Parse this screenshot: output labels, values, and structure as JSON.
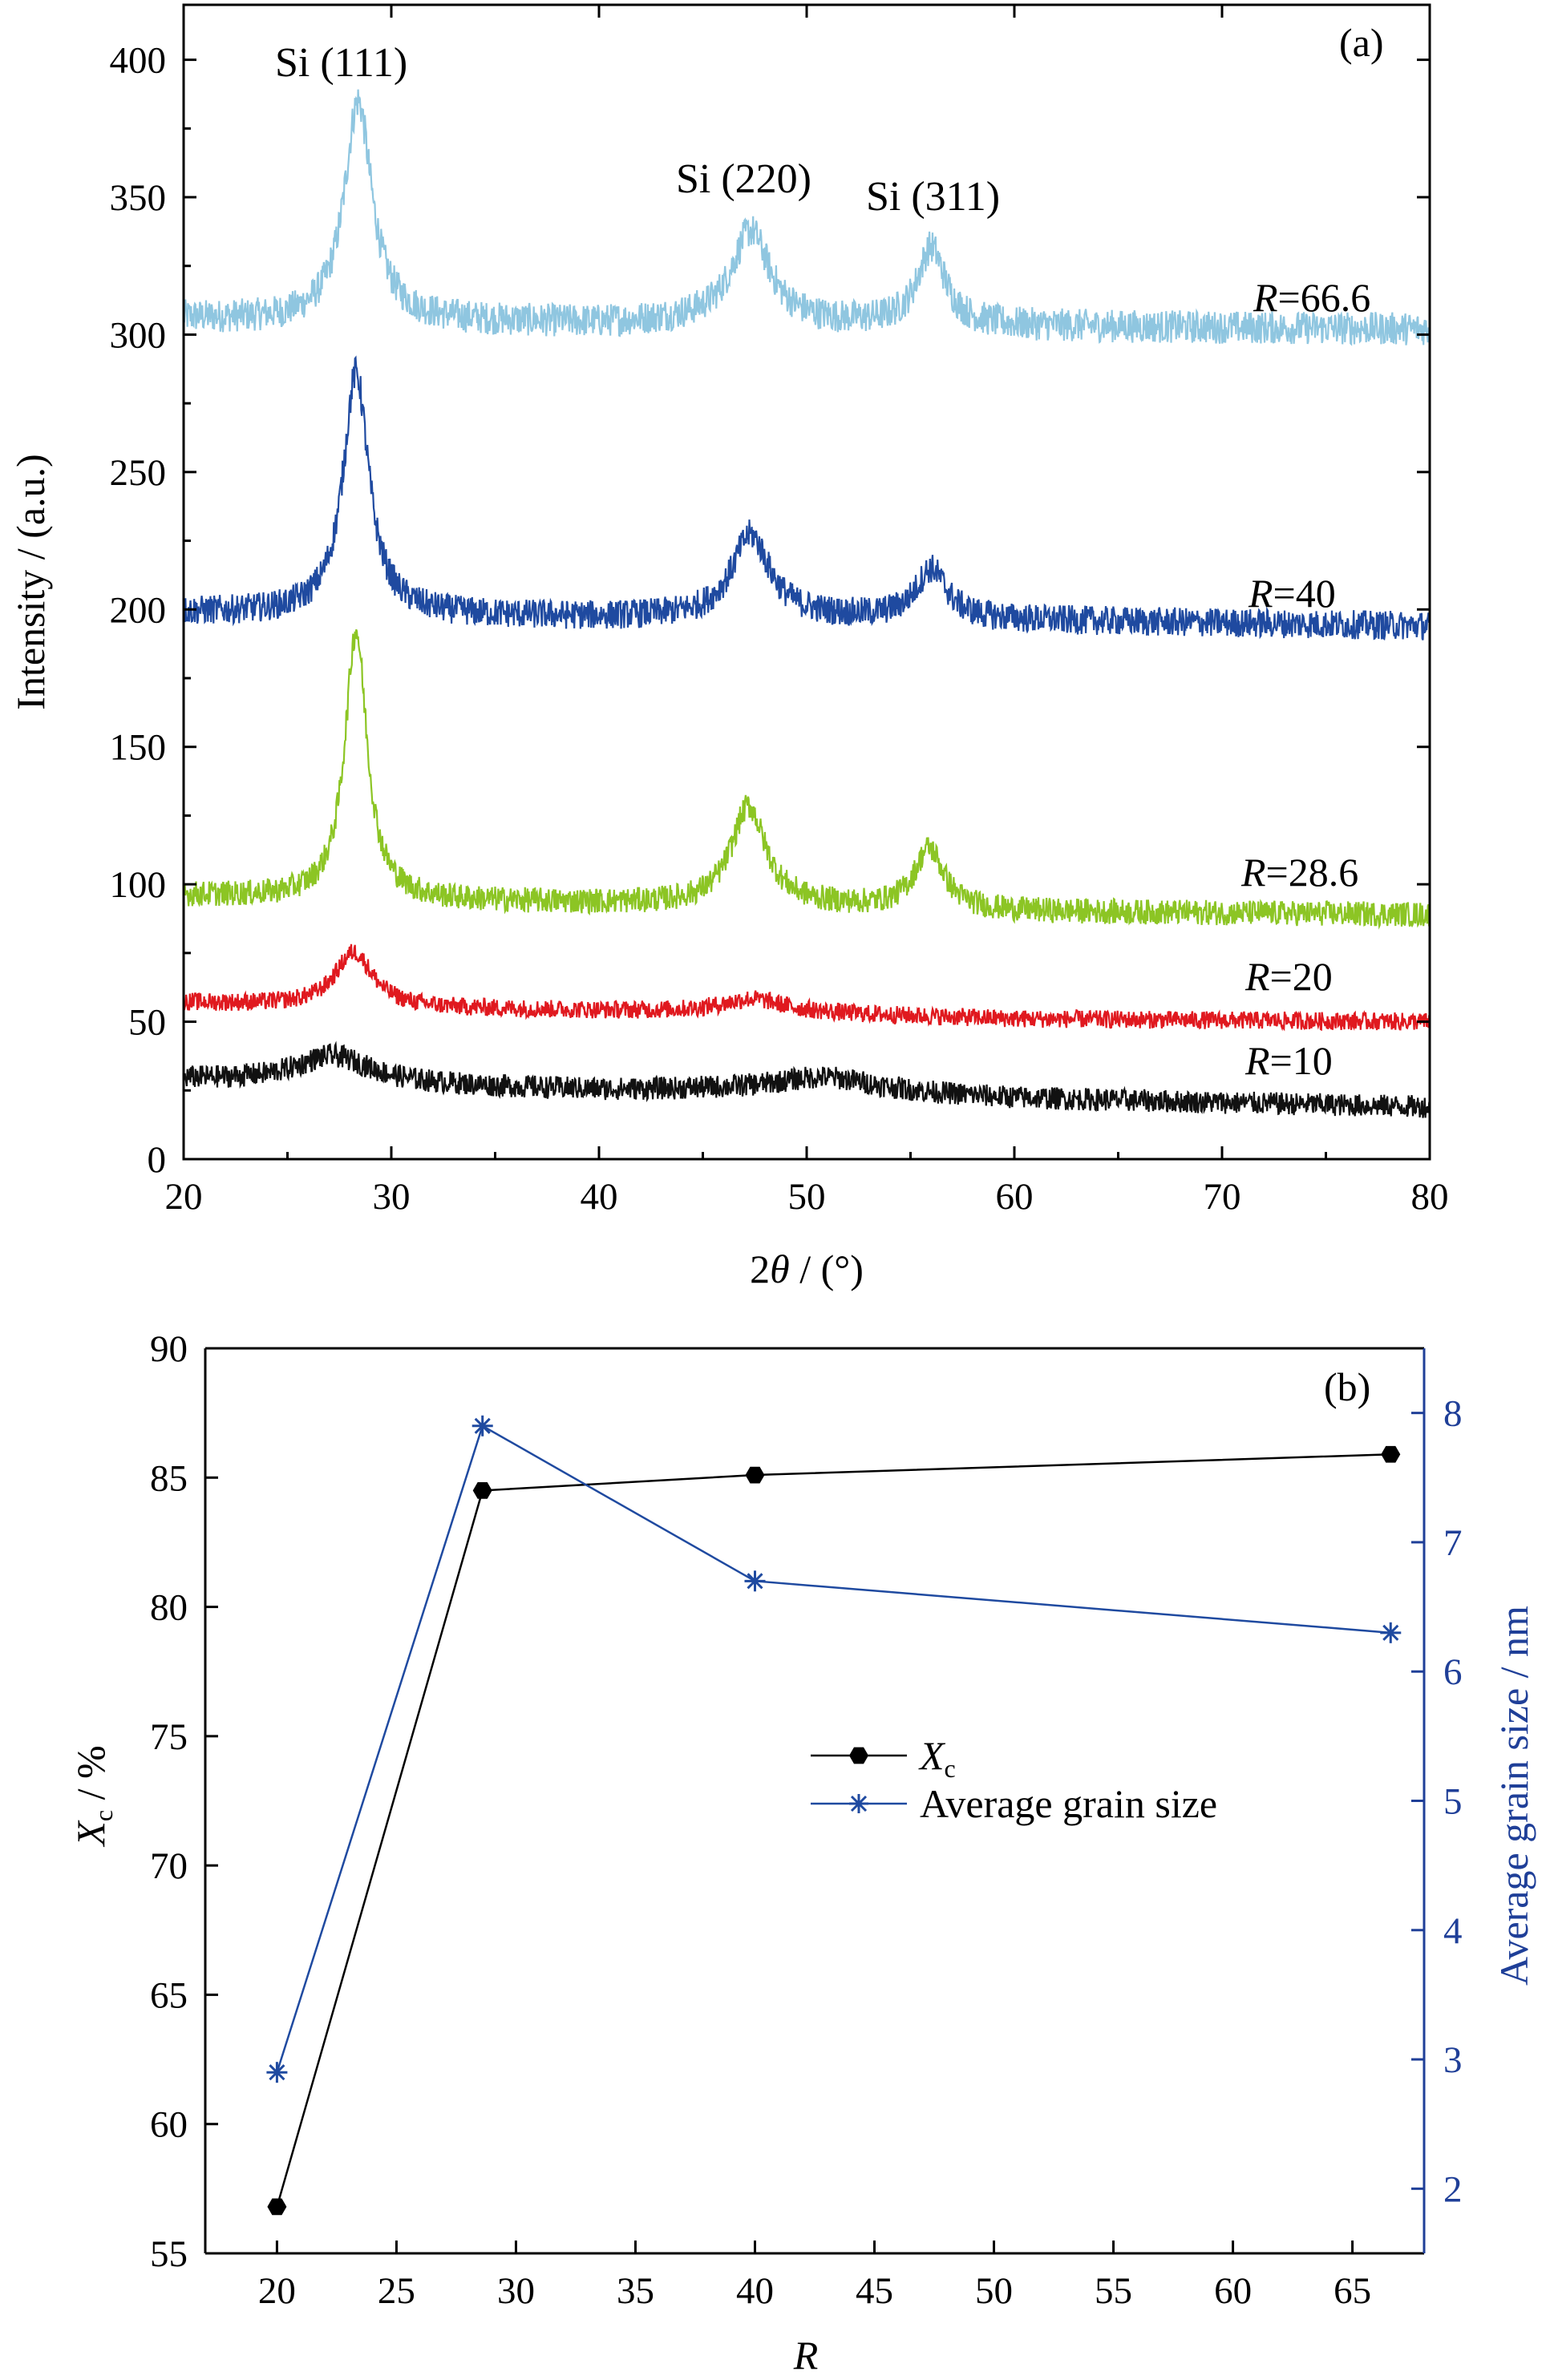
{
  "colors": {
    "axis": "#000000",
    "right_axis": "#1f3f98",
    "R66_6": "#8fc6e0",
    "R40": "#1f4aa0",
    "R28_6": "#8cc524",
    "R20": "#e0191f",
    "R10": "#111111",
    "xc_series": "#000000",
    "grain_series": "#1f4aa0"
  },
  "chart_data": [
    {
      "type": "line",
      "panel_label": "(a)",
      "xlabel_main": "2",
      "xlabel_symbol": "θ",
      "xlabel_unit": " / (°)",
      "ylabel": "Intensity / (a.u.)",
      "xlim": [
        20,
        80
      ],
      "ylim": [
        0,
        420
      ],
      "xticks": [
        "20",
        "30",
        "40",
        "50",
        "60",
        "70",
        "80"
      ],
      "yticks": [
        "0",
        "50",
        "100",
        "150",
        "200",
        "250",
        "300",
        "350",
        "400"
      ],
      "peak_labels": [
        "Si (111)",
        "Si (220)",
        "Si (311)"
      ],
      "series": [
        {
          "name_var": "R",
          "name_val": "=66.6",
          "baseline": [
            [
              20,
              306
            ],
            [
              25,
              305
            ],
            [
              30,
              305
            ],
            [
              40,
              304
            ],
            [
              45,
              305
            ],
            [
              50,
              304
            ],
            [
              60,
              303
            ],
            [
              80,
              302
            ]
          ],
          "peaks": [
            {
              "x": 28.4,
              "h": 80,
              "w": 0.8
            },
            {
              "x": 47.3,
              "h": 33,
              "w": 1.1
            },
            {
              "x": 56.0,
              "h": 28,
              "w": 0.8
            }
          ],
          "noise": 4
        },
        {
          "name_var": "R",
          "name_val": "=40",
          "baseline": [
            [
              20,
              199
            ],
            [
              30,
              198
            ],
            [
              40,
              197
            ],
            [
              50,
              197
            ],
            [
              60,
              196
            ],
            [
              80,
              194
            ]
          ],
          "peaks": [
            {
              "x": 28.3,
              "h": 88,
              "w": 0.75
            },
            {
              "x": 47.3,
              "h": 30,
              "w": 1.1
            },
            {
              "x": 56.0,
              "h": 18,
              "w": 0.9
            }
          ],
          "noise": 4
        },
        {
          "name_var": "R",
          "name_val": "=28.6",
          "baseline": [
            [
              20,
              96
            ],
            [
              30,
              94
            ],
            [
              40,
              93
            ],
            [
              50,
              92
            ],
            [
              60,
              90
            ],
            [
              80,
              89
            ]
          ],
          "peaks": [
            {
              "x": 28.3,
              "h": 98,
              "w": 0.65
            },
            {
              "x": 47.2,
              "h": 36,
              "w": 1.0
            },
            {
              "x": 55.9,
              "h": 22,
              "w": 0.85
            }
          ],
          "noise": 4
        },
        {
          "name_var": "R",
          "name_val": "=20",
          "baseline": [
            [
              20,
              57
            ],
            [
              30,
              55
            ],
            [
              40,
              54
            ],
            [
              50,
              53
            ],
            [
              60,
              51
            ],
            [
              80,
              50
            ]
          ],
          "peaks": [
            {
              "x": 28.2,
              "h": 20,
              "w": 1.1
            },
            {
              "x": 47.4,
              "h": 5,
              "w": 1.8
            }
          ],
          "noise": 3
        },
        {
          "name_var": "R",
          "name_val": "=10",
          "baseline": [
            [
              20,
              29
            ],
            [
              30,
              27
            ],
            [
              40,
              25
            ],
            [
              50,
              25
            ],
            [
              60,
              22
            ],
            [
              80,
              19
            ]
          ],
          "peaks": [
            {
              "x": 27.2,
              "h": 10,
              "w": 2.2
            },
            {
              "x": 51.0,
              "h": 5,
              "w": 3.0
            }
          ],
          "noise": 4
        }
      ]
    },
    {
      "type": "line",
      "panel_label": "(b)",
      "xlabel": "R",
      "ylabel_left_main": "X",
      "ylabel_left_sub": "c",
      "ylabel_left_unit": " / %",
      "ylabel_right": "Average grain size / nm",
      "xlim": [
        17,
        68
      ],
      "ylim_left": [
        55,
        90
      ],
      "ylim_right": [
        1.5,
        8.5
      ],
      "xticks": [
        "20",
        "25",
        "30",
        "35",
        "40",
        "45",
        "50",
        "55",
        "60",
        "65"
      ],
      "yticks_left": [
        "55",
        "60",
        "65",
        "70",
        "75",
        "80",
        "85",
        "90"
      ],
      "yticks_right": [
        "2",
        "3",
        "4",
        "5",
        "6",
        "7",
        "8"
      ],
      "x": [
        20,
        28.6,
        40,
        66.6
      ],
      "series": [
        {
          "legend_main": "X",
          "legend_sub": "c",
          "axis": "left",
          "marker": "hexagon",
          "values": [
            56.8,
            84.5,
            85.1,
            85.9
          ]
        },
        {
          "name": "Average grain size",
          "axis": "right",
          "marker": "asterisk",
          "values": [
            2.9,
            7.9,
            6.7,
            6.3
          ]
        }
      ],
      "legend_position": "center"
    }
  ]
}
